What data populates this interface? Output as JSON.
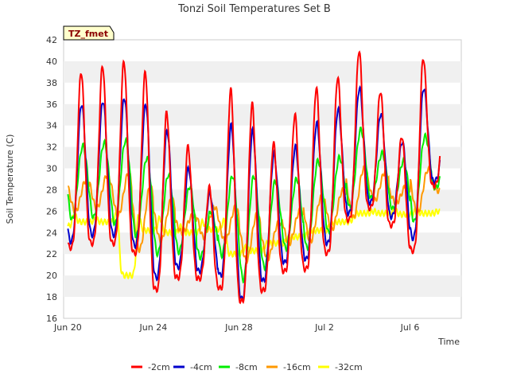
{
  "chart_data": {
    "type": "line",
    "title": "Tonzi Soil Temperatures Set B",
    "xlabel": "Time",
    "ylabel": "Soil Temperature (C)",
    "tag": "TZ_fmet",
    "xlim": [
      -0.2,
      18.4
    ],
    "ylim": [
      16,
      42
    ],
    "yticks": [
      16,
      18,
      20,
      22,
      24,
      26,
      28,
      30,
      32,
      34,
      36,
      38,
      40,
      42
    ],
    "xticks": [
      {
        "label": "Jun 20",
        "day": 0
      },
      {
        "label": "Jun 24",
        "day": 4
      },
      {
        "label": "Jun 28",
        "day": 8
      },
      {
        "label": "Jul 2",
        "day": 12
      },
      {
        "label": "Jul 6",
        "day": 16
      }
    ],
    "grid": "horizontal bands",
    "legend_position": "bottom",
    "series_style": [
      {
        "name": "-2cm",
        "color": "#ff0000"
      },
      {
        "name": "-4cm",
        "color": "#0000cc"
      },
      {
        "name": "-8cm",
        "color": "#00ee00"
      },
      {
        "name": "-16cm",
        "color": "#ff9900"
      },
      {
        "name": "-32cm",
        "color": "#ffff00"
      }
    ],
    "daily": {
      "days": [
        0,
        1,
        2,
        3,
        4,
        5,
        6,
        7,
        8,
        9,
        10,
        11,
        12,
        13,
        14,
        15,
        16,
        17
      ],
      "-2cm_max": [
        39.0,
        39.6,
        40.0,
        39.0,
        35.2,
        32.0,
        28.2,
        37.3,
        36.0,
        32.3,
        35.0,
        37.5,
        38.5,
        41.0,
        37.2,
        33.0,
        40.3,
        34.8
      ],
      "-2cm_min": [
        22.6,
        23.0,
        23.0,
        22.1,
        18.7,
        19.8,
        19.7,
        18.8,
        17.6,
        18.6,
        20.4,
        20.6,
        22.1,
        25.2,
        26.3,
        24.7,
        22.3,
        28.4
      ],
      "-4cm_max": [
        36.0,
        36.3,
        36.6,
        36.0,
        33.5,
        30.0,
        27.7,
        34.0,
        33.5,
        31.3,
        32.0,
        34.2,
        35.5,
        37.5,
        35.1,
        32.5,
        37.5,
        33.0
      ],
      "-4cm_min": [
        23.2,
        23.8,
        23.8,
        22.8,
        19.8,
        20.8,
        20.4,
        20.0,
        17.8,
        19.5,
        21.2,
        21.5,
        23.0,
        25.8,
        26.8,
        25.5,
        23.5,
        28.8
      ],
      "-8cm_max": [
        32.1,
        32.4,
        32.6,
        31.0,
        29.4,
        28.3,
        26.0,
        29.3,
        29.3,
        28.8,
        29.0,
        30.7,
        31.0,
        33.6,
        31.4,
        30.7,
        33.0,
        30.6
      ],
      "-8cm_min": [
        25.2,
        25.4,
        24.8,
        23.7,
        22.0,
        22.2,
        21.7,
        21.9,
        19.6,
        20.7,
        22.5,
        22.5,
        24.0,
        26.3,
        27.2,
        26.2,
        25.0,
        28.2
      ],
      "-16cm_max": [
        28.9,
        29.4,
        29.6,
        28.3,
        27.1,
        25.6,
        26.4,
        26.4,
        25.7,
        24.9,
        26.0,
        27.3,
        27.9,
        30.0,
        29.7,
        28.4,
        29.9,
        28.8
      ],
      "-16cm_min": [
        26.0,
        26.3,
        25.6,
        22.4,
        23.2,
        24.0,
        23.6,
        23.2,
        21.4,
        21.6,
        23.0,
        23.2,
        24.3,
        25.4,
        27.0,
        26.8,
        25.8,
        27.9
      ],
      "-32cm_day": [
        25.7,
        25.3,
        25.8,
        25.7,
        25.4,
        24.6,
        25.0,
        25.1,
        22.6,
        23.0,
        23.5,
        24.2,
        24.8,
        25.2,
        26.0,
        26.1,
        26.1,
        26.0
      ],
      "-32cm_min_dip": [
        24.6,
        25.0,
        25.0,
        20.0,
        24.2,
        24.0,
        24.0,
        24.3,
        22.0,
        22.3,
        23.0,
        23.6,
        24.2,
        25.0,
        25.8,
        25.8,
        25.7,
        25.8
      ]
    }
  }
}
